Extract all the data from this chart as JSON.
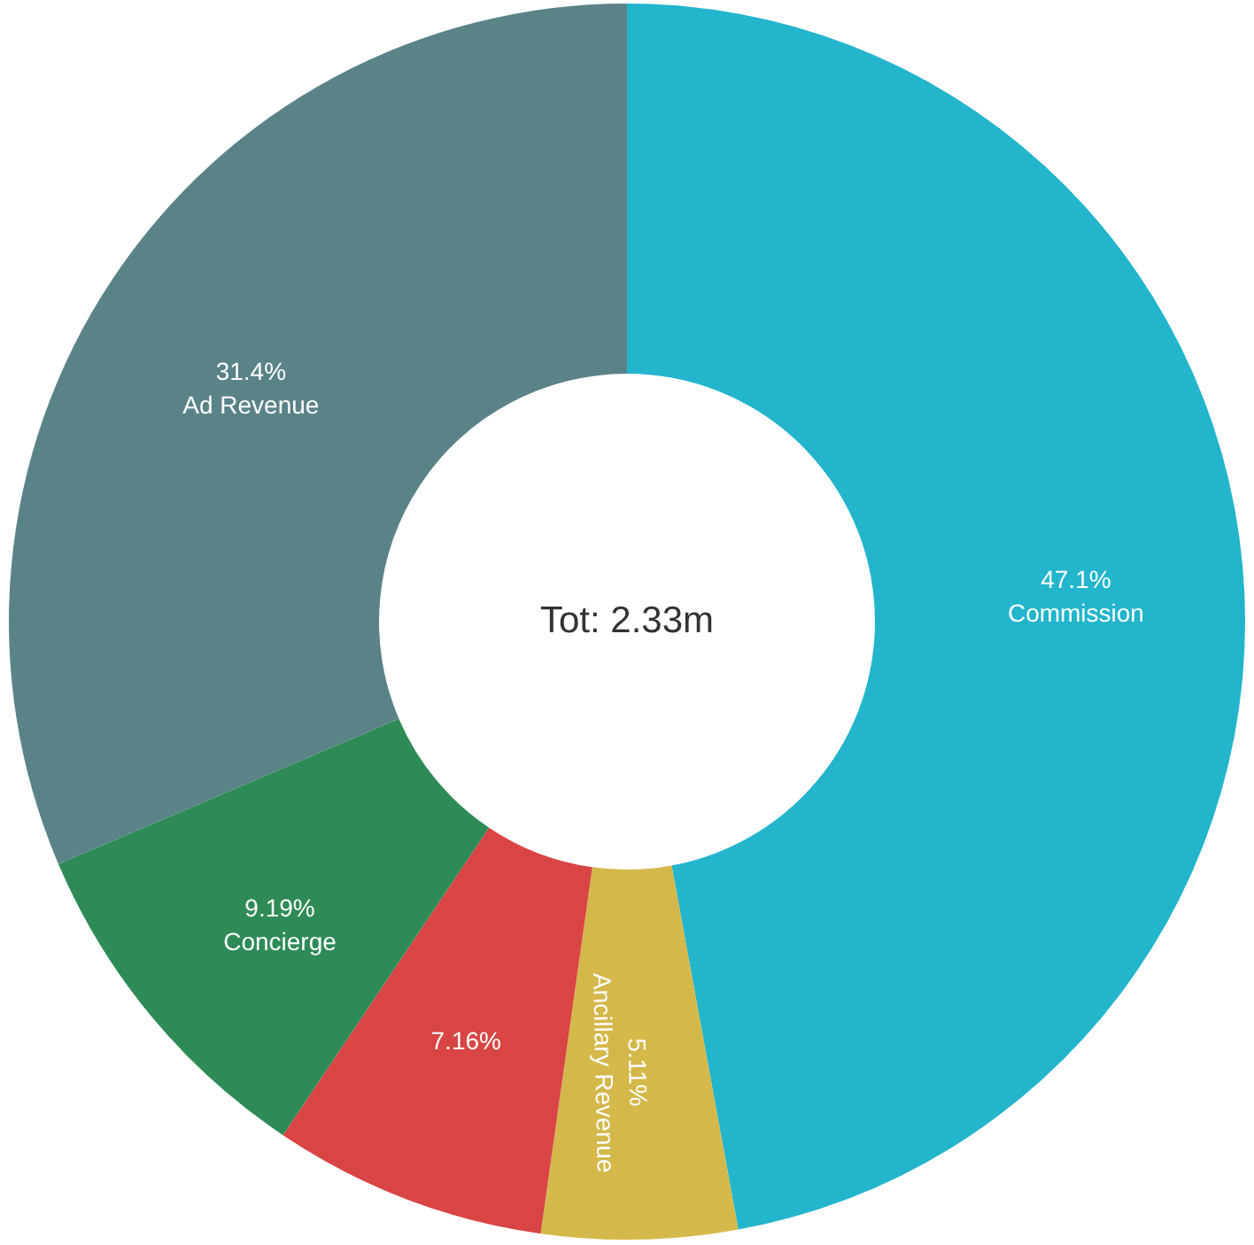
{
  "chart_data": {
    "type": "donut",
    "categories": [
      "Commission",
      "Ancillary Revenue",
      null,
      "Concierge",
      "Ad Revenue"
    ],
    "values": [
      47.1,
      5.11,
      7.16,
      9.19,
      31.4
    ],
    "value_labels": [
      "47.1%",
      "5.11%",
      "7.16%",
      "9.19%",
      "31.4%"
    ],
    "colors": [
      "#22b5cc",
      "#d4b84a",
      "#d94545",
      "#2e8b57",
      "#5a8388"
    ],
    "annotations": [
      "Tot: 2.33m"
    ]
  }
}
